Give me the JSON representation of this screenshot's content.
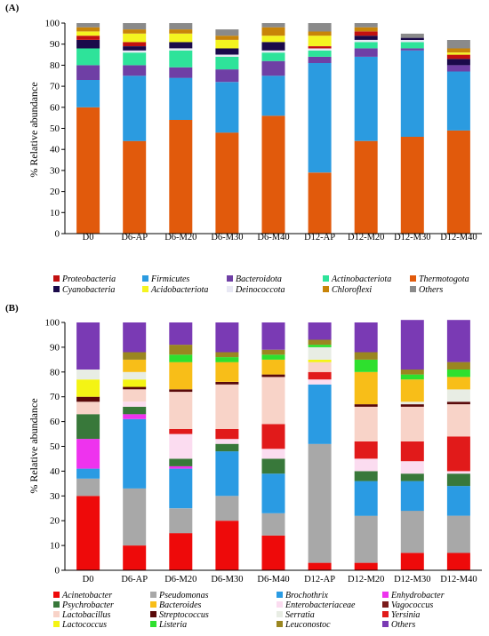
{
  "chart_data": [
    {
      "type": "bar",
      "stacked": true,
      "panel_label": "(A)",
      "ylabel": "% Relative abundance",
      "ylim": [
        0,
        100
      ],
      "yticks": [
        0,
        10,
        20,
        30,
        40,
        50,
        60,
        70,
        80,
        90,
        100
      ],
      "categories": [
        "D0",
        "D6-AP",
        "D6-M20",
        "D6-M30",
        "D6-M40",
        "D12-AP",
        "D12-M20",
        "D12-M30",
        "D12-M40"
      ],
      "legend_position": "bottom",
      "series": [
        {
          "name": "Thermotogota",
          "color": "#E15A0C",
          "values": [
            60,
            44,
            54,
            48,
            56,
            29,
            44,
            46,
            49
          ]
        },
        {
          "name": "Firmicutes",
          "color": "#2B9BE0",
          "values": [
            13,
            31,
            20,
            24,
            19,
            52,
            40,
            41,
            28
          ]
        },
        {
          "name": "Bacteroidota",
          "color": "#6F3FA5",
          "values": [
            7,
            5,
            5,
            6,
            7,
            3,
            4,
            1,
            3
          ]
        },
        {
          "name": "Actinobacteriota",
          "color": "#2EE39A",
          "values": [
            8,
            6,
            8,
            6,
            4,
            3,
            3,
            3,
            0
          ]
        },
        {
          "name": "Deinococcota",
          "color": "#E8E8F4",
          "values": [
            0,
            1,
            1,
            1,
            1,
            1,
            1,
            1,
            0
          ]
        },
        {
          "name": "Cyanobacteria",
          "color": "#1A0A4A",
          "values": [
            4,
            2,
            3,
            3,
            4,
            0,
            2,
            1,
            3
          ]
        },
        {
          "name": "Proteobacteria",
          "color": "#C21010",
          "values": [
            2,
            2,
            0,
            0,
            0,
            1,
            2,
            0,
            2
          ]
        },
        {
          "name": "Acidobacteriota",
          "color": "#F4F420",
          "values": [
            2,
            4,
            4,
            4,
            3,
            5,
            0,
            0,
            1
          ]
        },
        {
          "name": "Chloroflexi",
          "color": "#C88408",
          "values": [
            2,
            2,
            2,
            2,
            4,
            2,
            2,
            0,
            2
          ]
        },
        {
          "name": "Others",
          "color": "#8A8A8A",
          "values": [
            2,
            3,
            3,
            3,
            2,
            4,
            2,
            2,
            4
          ]
        }
      ],
      "legend": [
        "Proteobacteria",
        "Firmicutes",
        "Bacteroidota",
        "Actinobacteriota",
        "Thermotogota",
        "Cyanobacteria",
        "Acidobacteriota",
        "Deinococcota",
        "Chloroflexi",
        "Others"
      ]
    },
    {
      "type": "bar",
      "stacked": true,
      "panel_label": "(B)",
      "ylabel": "% Relative abundance",
      "ylim": [
        0,
        100
      ],
      "yticks": [
        0,
        10,
        20,
        30,
        40,
        50,
        60,
        70,
        80,
        90,
        100
      ],
      "categories": [
        "D0",
        "D6-AP",
        "D6-M20",
        "D6-M30",
        "D6-M40",
        "D12-AP",
        "D12-M20",
        "D12-M30",
        "D12-M40"
      ],
      "legend_position": "bottom",
      "series": [
        {
          "name": "Acinetobacter",
          "color": "#EE0A0A",
          "values": [
            30,
            10,
            15,
            20,
            14,
            3,
            3,
            7,
            7
          ]
        },
        {
          "name": "Pseudomonas",
          "color": "#A8A8A8",
          "values": [
            7,
            23,
            10,
            10,
            9,
            48,
            19,
            17,
            15
          ]
        },
        {
          "name": "Brochothrix",
          "color": "#2A9BE3",
          "values": [
            4,
            28,
            16,
            18,
            16,
            24,
            14,
            12,
            12
          ]
        },
        {
          "name": "Enhydrobacter",
          "color": "#EE33EE",
          "values": [
            12,
            2,
            1,
            0,
            0,
            0,
            0,
            0,
            0
          ]
        },
        {
          "name": "Psychrobacter",
          "color": "#38783A",
          "values": [
            10,
            3,
            3,
            3,
            6,
            0,
            4,
            3,
            5
          ]
        },
        {
          "name": "Vagococcus",
          "color": "#7A1A1A",
          "values": [
            0,
            0,
            0,
            0,
            0,
            0,
            0,
            0,
            0
          ]
        },
        {
          "name": "Enterobacteriaceae",
          "color": "#FBDCF0",
          "values": [
            0,
            2,
            10,
            2,
            4,
            2,
            5,
            5,
            1
          ]
        },
        {
          "name": "Yersinia",
          "color": "#E11A1A",
          "values": [
            0,
            0,
            2,
            4,
            10,
            3,
            7,
            8,
            14
          ]
        },
        {
          "name": "Lactobacillus",
          "color": "#F8D3C8",
          "values": [
            5,
            5,
            15,
            18,
            19,
            4,
            14,
            14,
            13
          ]
        },
        {
          "name": "Streptococcus",
          "color": "#5A0A0A",
          "values": [
            2,
            1,
            1,
            1,
            1,
            0,
            1,
            1,
            1
          ]
        },
        {
          "name": "Lactococcus",
          "color": "#F4F414",
          "values": [
            7,
            3,
            0,
            0,
            0,
            1,
            0,
            0,
            0
          ]
        },
        {
          "name": "Serratia",
          "color": "#E8EDE4",
          "values": [
            4,
            3,
            0,
            0,
            0,
            5,
            0,
            1,
            5
          ]
        },
        {
          "name": "Bacteroides",
          "color": "#F8BE18",
          "values": [
            0,
            5,
            11,
            8,
            6,
            0,
            13,
            9,
            5
          ]
        },
        {
          "name": "Listeria",
          "color": "#2EE02E",
          "values": [
            0,
            0,
            3,
            2,
            2,
            1,
            5,
            2,
            3
          ]
        },
        {
          "name": "Leuconostoc",
          "color": "#9A8620",
          "values": [
            0,
            3,
            4,
            2,
            2,
            2,
            3,
            2,
            3
          ]
        },
        {
          "name": "Others",
          "color": "#7A3AB4",
          "values": [
            19,
            12,
            9,
            12,
            11,
            7,
            12,
            20,
            17
          ]
        }
      ],
      "legend": [
        "Acinetobacter",
        "Pseudomonas",
        "Brochothrix",
        "Enhydrobacter",
        "Psychrobacter",
        "Bacteroides",
        "Enterobacteriaceae",
        "Vagococcus",
        "Lactobacillus",
        "Streptococcus",
        "Serratia",
        "Yersinia",
        "Lactococcus",
        "Listeria",
        "Leuconostoc",
        "Others"
      ]
    }
  ]
}
